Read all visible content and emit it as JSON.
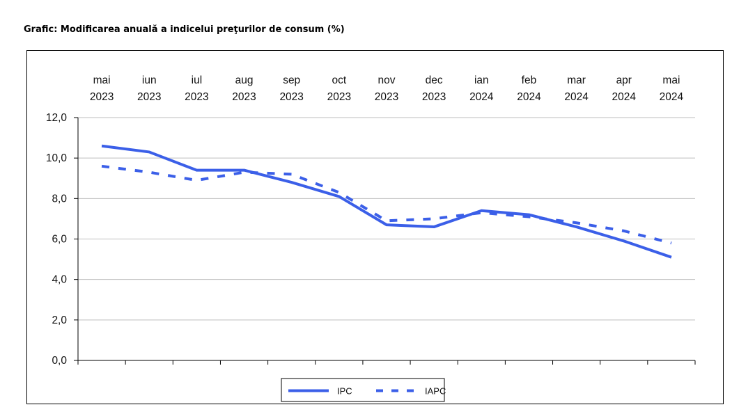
{
  "title": "Grafic: Modificarea anuală a indicelui preţurilor de consum (%)",
  "colors": {
    "series": "#3b5fe8",
    "grid": "#bdbdbd",
    "axis": "#000000"
  },
  "chart_data": {
    "type": "line",
    "title": "Grafic: Modificarea anuală a indicelui preţurilor de consum (%)",
    "categories": [
      [
        "mai",
        "2023"
      ],
      [
        "iun",
        "2023"
      ],
      [
        "iul",
        "2023"
      ],
      [
        "aug",
        "2023"
      ],
      [
        "sep",
        "2023"
      ],
      [
        "oct",
        "2023"
      ],
      [
        "nov",
        "2023"
      ],
      [
        "dec",
        "2023"
      ],
      [
        "ian",
        "2024"
      ],
      [
        "feb",
        "2024"
      ],
      [
        "mar",
        "2024"
      ],
      [
        "apr",
        "2024"
      ],
      [
        "mai",
        "2024"
      ]
    ],
    "series": [
      {
        "name": "IPC",
        "style": "solid",
        "values": [
          10.6,
          10.3,
          9.4,
          9.4,
          8.8,
          8.1,
          6.7,
          6.6,
          7.4,
          7.2,
          6.6,
          5.9,
          5.1
        ]
      },
      {
        "name": "IAPC",
        "style": "dashed",
        "values": [
          9.6,
          9.3,
          8.9,
          9.3,
          9.2,
          8.3,
          6.9,
          7.0,
          7.3,
          7.1,
          6.8,
          6.4,
          5.8
        ]
      }
    ],
    "ylim": [
      0,
      12
    ],
    "yticks": [
      "0,0",
      "2,0",
      "4,0",
      "6,0",
      "8,0",
      "10,0",
      "12,0"
    ],
    "grid": true,
    "legend_position": "bottom"
  }
}
